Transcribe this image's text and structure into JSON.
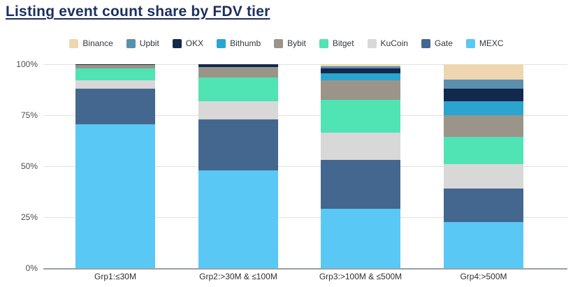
{
  "title": "Listing event count share by FDV tier",
  "chart_data": {
    "type": "bar",
    "stacked": true,
    "unit": "percent",
    "title": "Listing event count share by FDV tier",
    "legend_position": "top",
    "grid": true,
    "categories": [
      "Grp1:≤30M",
      "Grp2:>30M & ≤100M",
      "Grp3:>100M & ≤500M",
      "Grp4:>500M"
    ],
    "series": [
      {
        "name": "Binance",
        "color": "#EED6B0",
        "values": [
          0,
          0,
          1,
          7.5
        ]
      },
      {
        "name": "Upbit",
        "color": "#5B8FAE",
        "values": [
          0,
          0,
          1,
          4.5
        ]
      },
      {
        "name": "OKX",
        "color": "#12294D",
        "values": [
          0.5,
          1.5,
          2.5,
          6
        ]
      },
      {
        "name": "Bithumb",
        "color": "#2AA5CF",
        "values": [
          0,
          0,
          3.5,
          7
        ]
      },
      {
        "name": "Bybit",
        "color": "#9B9489",
        "values": [
          1.5,
          5,
          9.5,
          10.5
        ]
      },
      {
        "name": "Bitget",
        "color": "#50E3B4",
        "values": [
          6,
          11.5,
          16,
          13.5
        ]
      },
      {
        "name": "KuCoin",
        "color": "#D8D8D8",
        "values": [
          4,
          9,
          13.5,
          12
        ]
      },
      {
        "name": "Gate",
        "color": "#44678F",
        "values": [
          17.5,
          25,
          24,
          16.5
        ]
      },
      {
        "name": "MEXC",
        "color": "#5AC8F5",
        "values": [
          70.5,
          48,
          29,
          22.5
        ]
      }
    ],
    "y_axis": {
      "min": 0,
      "max": 100,
      "ticks": [
        "100%",
        "75%",
        "50%",
        "25%",
        "0%"
      ]
    }
  }
}
